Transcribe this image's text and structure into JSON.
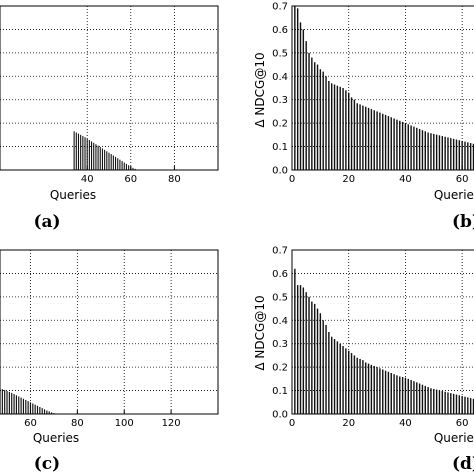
{
  "chart_data": [
    {
      "panel": "(a)",
      "type": "bar",
      "xlabel": "Queries",
      "ylabel": "",
      "xticks": [
        "40",
        "60",
        "80"
      ],
      "yticks": [],
      "xlim": [
        0,
        100
      ],
      "ylim": [
        0,
        0.7
      ],
      "grid": true,
      "x_start": 34,
      "values": [
        0.165,
        0.16,
        0.155,
        0.15,
        0.145,
        0.14,
        0.134,
        0.128,
        0.122,
        0.116,
        0.11,
        0.104,
        0.098,
        0.092,
        0.086,
        0.08,
        0.074,
        0.068,
        0.062,
        0.056,
        0.05,
        0.044,
        0.038,
        0.032,
        0.026,
        0.02,
        0.014,
        0.009,
        0.005,
        0.002
      ]
    },
    {
      "panel": "(b)",
      "type": "bar",
      "xlabel": "Queries",
      "ylabel": "Δ NDCG@10",
      "xticks": [
        "0",
        "20",
        "40",
        "60"
      ],
      "yticks": [
        "0.0",
        "0.1",
        "0.2",
        "0.3",
        "0.4",
        "0.5",
        "0.6",
        "0.7"
      ],
      "xlim": [
        0,
        67
      ],
      "ylim": [
        0,
        0.7
      ],
      "grid": true,
      "x_start": 1,
      "values": [
        0.7,
        0.69,
        0.63,
        0.6,
        0.55,
        0.5,
        0.48,
        0.46,
        0.45,
        0.43,
        0.42,
        0.4,
        0.38,
        0.37,
        0.365,
        0.36,
        0.355,
        0.35,
        0.34,
        0.33,
        0.31,
        0.3,
        0.285,
        0.28,
        0.275,
        0.27,
        0.265,
        0.26,
        0.255,
        0.25,
        0.245,
        0.24,
        0.235,
        0.23,
        0.225,
        0.22,
        0.215,
        0.21,
        0.205,
        0.2,
        0.195,
        0.19,
        0.185,
        0.18,
        0.175,
        0.17,
        0.165,
        0.16,
        0.157,
        0.154,
        0.151,
        0.148,
        0.145,
        0.142,
        0.139,
        0.136,
        0.133,
        0.13,
        0.127,
        0.124,
        0.121,
        0.118,
        0.115,
        0.112,
        0.109,
        0.106
      ]
    },
    {
      "panel": "(c)",
      "type": "bar",
      "xlabel": "Queries",
      "ylabel": "",
      "xticks": [
        "60",
        "80",
        "100",
        "120"
      ],
      "yticks": [],
      "xlim": [
        47,
        140
      ],
      "ylim": [
        0,
        0.7
      ],
      "grid": true,
      "x_start": 47,
      "values": [
        0.11,
        0.106,
        0.102,
        0.098,
        0.094,
        0.09,
        0.085,
        0.08,
        0.075,
        0.07,
        0.065,
        0.06,
        0.055,
        0.05,
        0.045,
        0.04,
        0.035,
        0.03,
        0.025,
        0.02,
        0.015,
        0.011,
        0.007,
        0.004,
        0.002
      ]
    },
    {
      "panel": "(d)",
      "type": "bar",
      "xlabel": "Queries",
      "ylabel": "Δ NDCG@10",
      "xticks": [
        "0",
        "20",
        "40",
        "60"
      ],
      "yticks": [
        "0.0",
        "0.1",
        "0.2",
        "0.3",
        "0.4",
        "0.5",
        "0.6",
        "0.7"
      ],
      "xlim": [
        0,
        67
      ],
      "ylim": [
        0,
        0.7
      ],
      "grid": true,
      "x_start": 1,
      "values": [
        0.62,
        0.55,
        0.55,
        0.54,
        0.52,
        0.5,
        0.48,
        0.47,
        0.45,
        0.43,
        0.4,
        0.38,
        0.35,
        0.33,
        0.32,
        0.31,
        0.3,
        0.29,
        0.28,
        0.27,
        0.26,
        0.25,
        0.24,
        0.235,
        0.23,
        0.22,
        0.215,
        0.21,
        0.205,
        0.2,
        0.195,
        0.19,
        0.185,
        0.18,
        0.175,
        0.17,
        0.165,
        0.16,
        0.158,
        0.155,
        0.15,
        0.145,
        0.14,
        0.135,
        0.13,
        0.125,
        0.12,
        0.115,
        0.11,
        0.107,
        0.104,
        0.101,
        0.098,
        0.095,
        0.092,
        0.089,
        0.086,
        0.083,
        0.08,
        0.077,
        0.074,
        0.071,
        0.068,
        0.065,
        0.062,
        0.06
      ]
    }
  ]
}
